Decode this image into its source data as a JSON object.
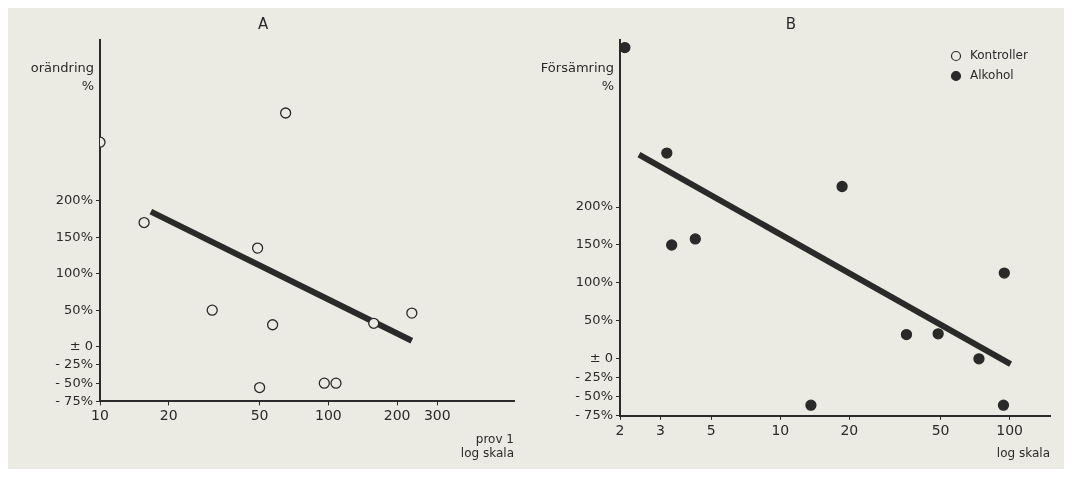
{
  "chart_data": [
    {
      "type": "scatter",
      "title": "A",
      "ylabel": "orändring\n%",
      "xlabel": "prov 1\nlog skala",
      "log": "x",
      "grid": false,
      "legend": false,
      "xlim": [
        10,
        650
      ],
      "xticks": [
        10,
        20,
        50,
        100,
        200,
        300
      ],
      "ylim": [
        -75,
        420
      ],
      "yticks": [
        {
          "value": -75,
          "label": "- 75%"
        },
        {
          "value": -50,
          "label": "- 50%"
        },
        {
          "value": -25,
          "label": "- 25%"
        },
        {
          "value": 0,
          "label": "± 0"
        },
        {
          "value": 50,
          "label": "50%"
        },
        {
          "value": 100,
          "label": "100%"
        },
        {
          "value": 150,
          "label": "150%"
        },
        {
          "value": 200,
          "label": "200%"
        }
      ],
      "series": [
        {
          "name": "Kontroller",
          "marker": "circle",
          "color": "#ebebe4",
          "x": [
            10,
            65,
            15.6,
            31,
            49,
            57,
            50,
            96,
            108,
            158,
            232
          ],
          "values": [
            280,
            320,
            170,
            50,
            135,
            30,
            -56,
            -50,
            -50,
            32,
            46
          ]
        },
        {
          "type": "line",
          "marker": "none",
          "color": "#2a2a2a",
          "x": [
            16.7,
            232
          ],
          "values": [
            185,
            8
          ]
        }
      ]
    },
    {
      "type": "scatter",
      "title": "B",
      "ylabel": "Försämring\n%",
      "xlabel": "log skala",
      "log": "x",
      "grid": false,
      "legend": "top right",
      "xlim": [
        2,
        150
      ],
      "xticks": [
        2,
        3,
        5,
        10,
        20,
        50,
        100
      ],
      "ylim": [
        -75,
        420
      ],
      "yticks": [
        {
          "value": -75,
          "label": "- 75%"
        },
        {
          "value": -50,
          "label": "- 50%"
        },
        {
          "value": -25,
          "label": "- 25%"
        },
        {
          "value": 0,
          "label": "± 0"
        },
        {
          "value": 50,
          "label": "50%"
        },
        {
          "value": 100,
          "label": "100%"
        },
        {
          "value": 150,
          "label": "150%"
        },
        {
          "value": 200,
          "label": "200%"
        }
      ],
      "series": [
        {
          "name": "Alkohol",
          "marker": "circle",
          "color": "#2a2a2a",
          "x": [
            2.1,
            3.2,
            3.36,
            4.26,
            18.6,
            13.6,
            35.5,
            48.8,
            73.5,
            94.8,
            94
          ],
          "values": [
            410,
            271,
            150,
            158,
            227,
            -61,
            32,
            33,
            0,
            113,
            -61
          ]
        },
        {
          "type": "line",
          "marker": "none",
          "color": "#2a2a2a",
          "x": [
            2.42,
            101
          ],
          "values": [
            269,
            -7
          ]
        }
      ]
    }
  ]
}
